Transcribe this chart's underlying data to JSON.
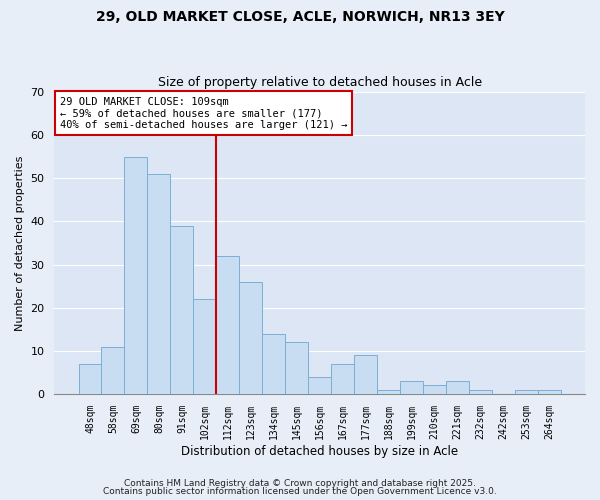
{
  "title_line1": "29, OLD MARKET CLOSE, ACLE, NORWICH, NR13 3EY",
  "title_line2": "Size of property relative to detached houses in Acle",
  "xlabel": "Distribution of detached houses by size in Acle",
  "ylabel": "Number of detached properties",
  "categories": [
    "48sqm",
    "58sqm",
    "69sqm",
    "80sqm",
    "91sqm",
    "102sqm",
    "112sqm",
    "123sqm",
    "134sqm",
    "145sqm",
    "156sqm",
    "167sqm",
    "177sqm",
    "188sqm",
    "199sqm",
    "210sqm",
    "221sqm",
    "232sqm",
    "242sqm",
    "253sqm",
    "264sqm"
  ],
  "values": [
    7,
    11,
    55,
    51,
    39,
    22,
    32,
    26,
    14,
    12,
    4,
    7,
    9,
    1,
    3,
    2,
    3,
    1,
    0,
    1,
    1
  ],
  "bar_color": "#c9ddf2",
  "bar_edge_color": "#7bafd4",
  "vline_x": 5.5,
  "vline_color": "#cc0000",
  "ylim": [
    0,
    70
  ],
  "yticks": [
    0,
    10,
    20,
    30,
    40,
    50,
    60,
    70
  ],
  "annotation_title": "29 OLD MARKET CLOSE: 109sqm",
  "annotation_line1": "← 59% of detached houses are smaller (177)",
  "annotation_line2": "40% of semi-detached houses are larger (121) →",
  "box_edge_color": "#cc0000",
  "footer1": "Contains HM Land Registry data © Crown copyright and database right 2025.",
  "footer2": "Contains public sector information licensed under the Open Government Licence v3.0.",
  "background_color": "#e8eef8",
  "grid_color": "#d0d8ea",
  "plot_bg_color": "#dce6f5"
}
